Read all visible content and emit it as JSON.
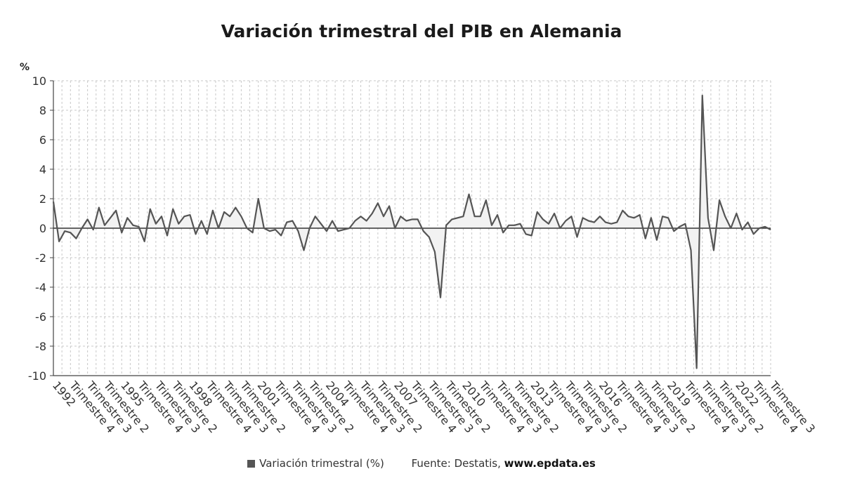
{
  "chart_data": {
    "type": "line",
    "title": "Variación trimestral del PIB en Alemania",
    "ylabel": "%",
    "ylim": [
      -10,
      10
    ],
    "yticks": [
      10,
      8,
      6,
      4,
      2,
      0,
      -2,
      -4,
      -6,
      -8,
      -10
    ],
    "grid": true,
    "legend_position": "bottom",
    "x_tick_labels": [
      "1992",
      "Trimestre 4",
      "Trimestre 3",
      "Trimestre 2",
      "1995",
      "Trimestre 4",
      "Trimestre 3",
      "Trimestre 2",
      "1998",
      "Trimestre 4",
      "Trimestre 3",
      "Trimestre 2",
      "2001",
      "Trimestre 4",
      "Trimestre 3",
      "Trimestre 2",
      "2004",
      "Trimestre 4",
      "Trimestre 3",
      "Trimestre 2",
      "2007",
      "Trimestre 4",
      "Trimestre 3",
      "Trimestre 2",
      "2010",
      "Trimestre 4",
      "Trimestre 3",
      "Trimestre 2",
      "2013",
      "Trimestre 4",
      "Trimestre 3",
      "Trimestre 2",
      "2016",
      "Trimestre 4",
      "Trimestre 3",
      "Trimestre 2",
      "2019",
      "Trimestre 4",
      "Trimestre 3",
      "Trimestre 2",
      "2022",
      "Trimestre 4",
      "Trimestre 3"
    ],
    "series": [
      {
        "name": "Variación trimestral (%)",
        "color": "#555555",
        "fill": "#f2f2f2",
        "values": [
          1.8,
          -0.9,
          -0.2,
          -0.3,
          -0.7,
          0.0,
          0.6,
          -0.1,
          1.4,
          0.2,
          0.7,
          1.2,
          -0.3,
          0.7,
          0.2,
          0.1,
          -0.9,
          1.3,
          0.3,
          0.8,
          -0.5,
          1.3,
          0.3,
          0.8,
          0.9,
          -0.4,
          0.5,
          -0.4,
          1.2,
          0.0,
          1.1,
          0.8,
          1.4,
          0.8,
          0.0,
          -0.3,
          2.0,
          0.0,
          -0.2,
          -0.1,
          -0.5,
          0.4,
          0.5,
          -0.2,
          -1.5,
          0.0,
          0.8,
          0.3,
          -0.2,
          0.5,
          -0.2,
          -0.1,
          0.0,
          0.5,
          0.8,
          0.5,
          1.0,
          1.7,
          0.8,
          1.5,
          0.0,
          0.8,
          0.5,
          0.6,
          0.6,
          -0.2,
          -0.6,
          -1.6,
          -4.7,
          0.2,
          0.6,
          0.7,
          0.8,
          2.3,
          0.8,
          0.8,
          1.9,
          0.2,
          0.9,
          -0.3,
          0.2,
          0.2,
          0.3,
          -0.4,
          -0.5,
          1.1,
          0.6,
          0.3,
          1.0,
          0.0,
          0.5,
          0.8,
          -0.6,
          0.7,
          0.5,
          0.4,
          0.8,
          0.4,
          0.3,
          0.4,
          1.2,
          0.8,
          0.7,
          0.9,
          -0.7,
          0.7,
          -0.8,
          0.8,
          0.7,
          -0.2,
          0.1,
          0.3,
          -1.5,
          -9.5,
          9.0,
          0.7,
          -1.5,
          1.9,
          0.8,
          0.0,
          1.0,
          -0.1,
          0.4,
          -0.4,
          0.0,
          0.1,
          -0.1
        ]
      }
    ]
  },
  "legend": {
    "series_label": "Variación trimestral (%)",
    "swatch_color": "#555555",
    "source_label": "Fuente: Destatis,",
    "source_site": "www.epdata.es"
  }
}
